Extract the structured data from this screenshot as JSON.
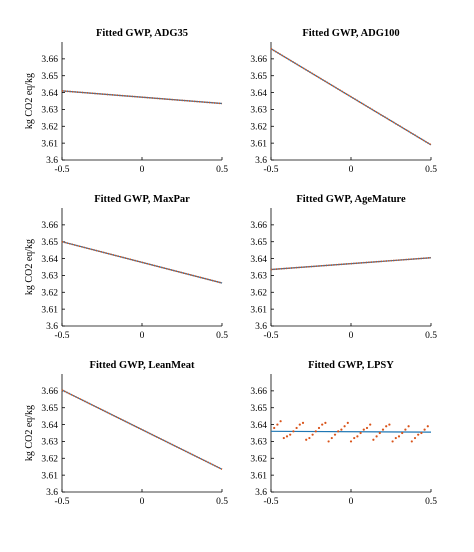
{
  "chart_data": [
    {
      "type": "line",
      "title": "Fitted GWP, ADG35",
      "ylabel": "kg CO2 eq/kg",
      "xlim": [
        -0.5,
        0.5
      ],
      "ylim": [
        3.6,
        3.67
      ],
      "xticks": [
        "-0.5",
        "0",
        "0.5"
      ],
      "yticks": [
        "3.6",
        "3.61",
        "3.62",
        "3.63",
        "3.64",
        "3.65",
        "3.66"
      ],
      "series": [
        {
          "style": "fit-line",
          "color": "#1f77b4",
          "x": [
            -0.5,
            0.5
          ],
          "y": [
            3.641,
            3.6335
          ]
        },
        {
          "style": "points",
          "color": "#d95319",
          "x": [
            -0.5,
            0.5
          ],
          "y": [
            3.641,
            3.6335
          ]
        }
      ]
    },
    {
      "type": "line",
      "title": "Fitted GWP, ADG100",
      "ylabel": "",
      "xlim": [
        -0.5,
        0.5
      ],
      "ylim": [
        3.6,
        3.67
      ],
      "xticks": [
        "-0.5",
        "0",
        "0.5"
      ],
      "yticks": [
        "3.6",
        "3.61",
        "3.62",
        "3.63",
        "3.64",
        "3.65",
        "3.66"
      ],
      "series": [
        {
          "style": "fit-line",
          "color": "#1f77b4",
          "x": [
            -0.5,
            0.5
          ],
          "y": [
            3.666,
            3.609
          ]
        },
        {
          "style": "points",
          "color": "#d95319",
          "x": [
            -0.5,
            0.5
          ],
          "y": [
            3.666,
            3.609
          ]
        }
      ]
    },
    {
      "type": "line",
      "title": "Fitted GWP, MaxPar",
      "ylabel": "kg CO2 eq/kg",
      "xlim": [
        -0.5,
        0.5
      ],
      "ylim": [
        3.6,
        3.67
      ],
      "xticks": [
        "-0.5",
        "0",
        "0.5"
      ],
      "yticks": [
        "3.6",
        "3.61",
        "3.62",
        "3.63",
        "3.64",
        "3.65",
        "3.66"
      ],
      "series": [
        {
          "style": "fit-line",
          "color": "#1f77b4",
          "x": [
            -0.5,
            0.5
          ],
          "y": [
            3.65,
            3.6255
          ]
        },
        {
          "style": "points",
          "color": "#d95319",
          "x": [
            -0.5,
            0.5
          ],
          "y": [
            3.65,
            3.6255
          ]
        }
      ]
    },
    {
      "type": "line",
      "title": "Fitted GWP, AgeMature",
      "ylabel": "",
      "xlim": [
        -0.5,
        0.5
      ],
      "ylim": [
        3.6,
        3.67
      ],
      "xticks": [
        "-0.5",
        "0",
        "0.5"
      ],
      "yticks": [
        "3.6",
        "3.61",
        "3.62",
        "3.63",
        "3.64",
        "3.65",
        "3.66"
      ],
      "series": [
        {
          "style": "fit-line",
          "color": "#1f77b4",
          "x": [
            -0.5,
            0.5
          ],
          "y": [
            3.6335,
            3.6405
          ]
        },
        {
          "style": "points",
          "color": "#d95319",
          "x": [
            -0.5,
            0.5
          ],
          "y": [
            3.6335,
            3.6405
          ]
        }
      ]
    },
    {
      "type": "line",
      "title": "Fitted GWP, LeanMeat",
      "ylabel": "kg CO2 eq/kg",
      "xlim": [
        -0.5,
        0.5
      ],
      "ylim": [
        3.6,
        3.67
      ],
      "xticks": [
        "-0.5",
        "0",
        "0.5"
      ],
      "yticks": [
        "3.6",
        "3.61",
        "3.62",
        "3.63",
        "3.64",
        "3.65",
        "3.66"
      ],
      "series": [
        {
          "style": "fit-line",
          "color": "#1f77b4",
          "x": [
            -0.5,
            0.5
          ],
          "y": [
            3.6605,
            3.6135
          ]
        },
        {
          "style": "points",
          "color": "#d95319",
          "x": [
            -0.5,
            0.5
          ],
          "y": [
            3.6605,
            3.6135
          ]
        }
      ]
    },
    {
      "type": "scatter",
      "title": "Fitted GWP, LPSY",
      "ylabel": "",
      "xlim": [
        -0.5,
        0.5
      ],
      "ylim": [
        3.6,
        3.67
      ],
      "xticks": [
        "-0.5",
        "0",
        "0.5"
      ],
      "yticks": [
        "3.6",
        "3.61",
        "3.62",
        "3.63",
        "3.64",
        "3.65",
        "3.66"
      ],
      "series": [
        {
          "style": "fit-line",
          "color": "#1f77b4",
          "x": [
            -0.5,
            0.5
          ],
          "y": [
            3.636,
            3.6355
          ]
        },
        {
          "style": "points",
          "color": "#d95319",
          "x": [
            -0.48,
            -0.46,
            -0.44,
            -0.42,
            -0.4,
            -0.38,
            -0.36,
            -0.34,
            -0.32,
            -0.3,
            -0.28,
            -0.26,
            -0.24,
            -0.22,
            -0.2,
            -0.18,
            -0.16,
            -0.14,
            -0.12,
            -0.1,
            -0.08,
            -0.06,
            -0.04,
            -0.02,
            0.0,
            0.02,
            0.04,
            0.06,
            0.08,
            0.1,
            0.12,
            0.14,
            0.16,
            0.18,
            0.2,
            0.22,
            0.24,
            0.26,
            0.28,
            0.3,
            0.32,
            0.34,
            0.36,
            0.38,
            0.4,
            0.42,
            0.44,
            0.46,
            0.48
          ],
          "y": [
            3.638,
            3.64,
            3.642,
            3.632,
            3.633,
            3.634,
            3.636,
            3.638,
            3.64,
            3.641,
            3.631,
            3.632,
            3.634,
            3.636,
            3.638,
            3.64,
            3.641,
            3.63,
            3.632,
            3.634,
            3.636,
            3.637,
            3.639,
            3.641,
            3.63,
            3.632,
            3.633,
            3.635,
            3.637,
            3.638,
            3.64,
            3.631,
            3.633,
            3.635,
            3.637,
            3.639,
            3.64,
            3.63,
            3.632,
            3.633,
            3.635,
            3.637,
            3.639,
            3.63,
            3.632,
            3.634,
            3.635,
            3.637,
            3.639
          ]
        }
      ]
    }
  ]
}
